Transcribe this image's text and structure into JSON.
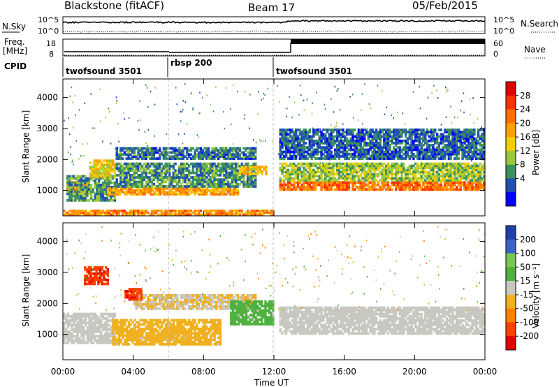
{
  "header": {
    "station": "Blackstone (fitACF)",
    "beam": "Beam 17",
    "date": "05/Feb/2015"
  },
  "noise_panel": {
    "left_label": "N.Sky",
    "right_label": "N.Search",
    "left_ticks": [
      "10^5",
      "10^0"
    ],
    "right_ticks": [
      "10^5",
      "10^0"
    ]
  },
  "freq_panel": {
    "left_label_1": "Freq.",
    "left_label_2": "[MHz]",
    "right_label": "Nave",
    "left_ticks": [
      "18",
      "8"
    ],
    "right_ticks": [
      "60",
      "0"
    ]
  },
  "cpid": {
    "label": "CPID",
    "segments": [
      {
        "name": "twofsound 3501",
        "start_hour": 0,
        "end_hour": 6
      },
      {
        "name": "rbsp 200",
        "start_hour": 6,
        "end_hour": 12
      },
      {
        "name": "twofsound 3501",
        "start_hour": 12,
        "end_hour": 24
      }
    ]
  },
  "power_panel": {
    "ylabel": "Slant Range [km]",
    "cbar_label": "Power [dB]",
    "cbar_ticks": [
      "28",
      "24",
      "20",
      "16",
      "12",
      "8",
      "4"
    ],
    "cbar_colors": [
      "#e00000",
      "#ff3000",
      "#ff7000",
      "#ffa000",
      "#f0d000",
      "#9cc83c",
      "#3c9060",
      "#2050b0",
      "#0000ff"
    ]
  },
  "velocity_panel": {
    "ylabel": "Slant Range [km]",
    "cbar_label": "Velocity [m s⁻¹]",
    "cbar_ticks": [
      "200",
      "100",
      "50",
      "15",
      "-15",
      "-50",
      "-100",
      "-200"
    ],
    "cbar_colors": [
      "#2040a8",
      "#3c64c8",
      "#78c850",
      "#50b040",
      "#c8c8c0",
      "#f0b020",
      "#ff8000",
      "#ff4000",
      "#e00000"
    ]
  },
  "x_axis": {
    "label": "Time UT",
    "ticks": [
      "00:00",
      "04:00",
      "08:00",
      "12:00",
      "16:00",
      "20:00",
      "00:00"
    ]
  },
  "y_axis": {
    "ticks": [
      "1000",
      "2000",
      "3000",
      "4000"
    ]
  },
  "chart_data": [
    {
      "type": "heatmap",
      "title": "Power [dB]",
      "xlabel": "Time UT",
      "ylabel": "Slant Range [km]",
      "xlim": [
        0,
        24
      ],
      "ylim": [
        180,
        4600
      ],
      "zlim": [
        0,
        32
      ],
      "bands": [
        {
          "t0": 0.2,
          "t1": 1.5,
          "r0": 900,
          "r1": 1300,
          "z": 22
        },
        {
          "t0": 0.2,
          "t1": 3.0,
          "r0": 650,
          "r1": 1500,
          "z": 8
        },
        {
          "t0": 1.5,
          "t1": 3.0,
          "r0": 1400,
          "r1": 2000,
          "z": 16
        },
        {
          "t0": 2.5,
          "t1": 10.0,
          "r0": 850,
          "r1": 1100,
          "z": 20
        },
        {
          "t0": 3.0,
          "t1": 11.0,
          "r0": 1100,
          "r1": 1900,
          "z": 8
        },
        {
          "t0": 3.0,
          "t1": 11.0,
          "r0": 2000,
          "r1": 2400,
          "z": 6
        },
        {
          "t0": 10.0,
          "t1": 11.6,
          "r0": 1500,
          "r1": 1800,
          "z": 18
        },
        {
          "t0": 12.3,
          "t1": 24.0,
          "r0": 1000,
          "r1": 1300,
          "z": 24
        },
        {
          "t0": 12.3,
          "t1": 24.0,
          "r0": 1300,
          "r1": 1900,
          "z": 12
        },
        {
          "t0": 12.3,
          "t1": 24.0,
          "r0": 2000,
          "r1": 3000,
          "z": 5
        },
        {
          "t0": 0.0,
          "t1": 12.0,
          "r0": 200,
          "r1": 380,
          "z": 22
        }
      ]
    },
    {
      "type": "heatmap",
      "title": "Velocity [m s⁻¹]",
      "xlabel": "Time UT",
      "ylabel": "Slant Range [km]",
      "xlim": [
        0,
        24
      ],
      "ylim": [
        180,
        4600
      ],
      "zlim": [
        -250,
        250
      ],
      "bands": [
        {
          "t0": 0.0,
          "t1": 3.0,
          "r0": 700,
          "r1": 1700,
          "z": 0
        },
        {
          "t0": 1.2,
          "t1": 2.6,
          "r0": 2600,
          "r1": 3200,
          "z": -200
        },
        {
          "t0": 2.8,
          "t1": 9.0,
          "r0": 650,
          "r1": 1500,
          "z": -60
        },
        {
          "t0": 4.0,
          "t1": 11.0,
          "r0": 1800,
          "r1": 2300,
          "z": -30
        },
        {
          "t0": 9.5,
          "t1": 12.0,
          "r0": 1300,
          "r1": 2100,
          "z": 60
        },
        {
          "t0": 12.3,
          "t1": 24.0,
          "r0": 1000,
          "r1": 1900,
          "z": 0
        },
        {
          "t0": 3.5,
          "t1": 4.5,
          "r0": 2100,
          "r1": 2500,
          "z": -200
        }
      ]
    }
  ]
}
